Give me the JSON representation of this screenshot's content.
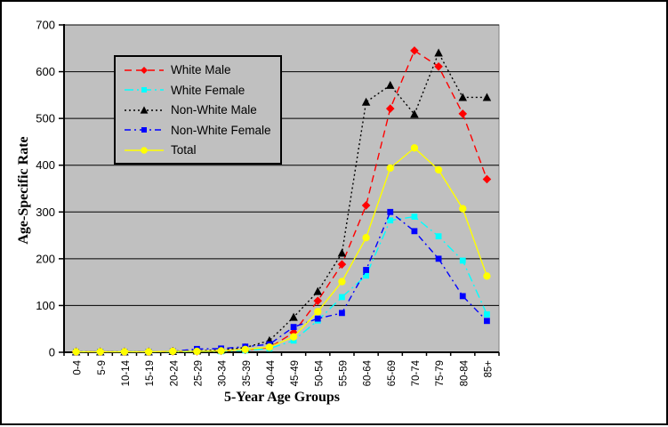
{
  "figure": {
    "background": "#FFFFFF",
    "plot_background": "#C0C0C0",
    "border_color": "#000000",
    "gridline_color": "#000000"
  },
  "legend": {
    "items": [
      "White Male",
      "White Female",
      "Non-White Male",
      "Non-White Female",
      "Total"
    ]
  },
  "chart_data": {
    "type": "line",
    "title": "",
    "xlabel": "5-Year Age Groups",
    "ylabel": "Age-Specific Rate",
    "ylim": [
      0,
      700
    ],
    "y_ticks": [
      0,
      100,
      200,
      300,
      400,
      500,
      600,
      700
    ],
    "grid": true,
    "legend_position": "upper-left-inside",
    "categories": [
      "0-4",
      "5-9",
      "10-14",
      "15-19",
      "20-24",
      "25-29",
      "30-34",
      "35-39",
      "40-44",
      "45-49",
      "50-54",
      "55-59",
      "60-64",
      "65-69",
      "70-74",
      "75-79",
      "80-84",
      "85+"
    ],
    "series": [
      {
        "name": "White Male",
        "color": "#FF0000",
        "line_style": "dashed",
        "dash": "8 5",
        "marker": "diamond",
        "values": [
          1,
          1,
          1,
          1,
          2,
          2,
          3,
          5,
          10,
          42,
          110,
          188,
          314,
          521,
          645,
          611,
          510,
          370
        ]
      },
      {
        "name": "White Female",
        "color": "#00FFFF",
        "line_style": "dash-dot",
        "dash": "10 4 2 4",
        "marker": "square",
        "values": [
          1,
          1,
          1,
          1,
          1,
          2,
          2,
          4,
          8,
          25,
          68,
          118,
          164,
          282,
          290,
          248,
          196,
          81
        ]
      },
      {
        "name": "Non-White Male",
        "color": "#000000",
        "line_style": "dotted",
        "dash": "2 3",
        "marker": "triangle",
        "values": [
          1,
          1,
          1,
          1,
          2,
          3,
          5,
          10,
          25,
          75,
          130,
          212,
          535,
          571,
          509,
          640,
          545,
          545
        ]
      },
      {
        "name": "Non-White Female",
        "color": "#0000FF",
        "line_style": "dash-dot",
        "dash": "7 4 2 4",
        "marker": "square",
        "values": [
          1,
          1,
          1,
          1,
          2,
          7,
          8,
          12,
          17,
          54,
          72,
          84,
          176,
          300,
          259,
          200,
          120,
          67
        ]
      },
      {
        "name": "Total",
        "color": "#FFFF00",
        "line_style": "solid",
        "dash": "",
        "marker": "circle",
        "values": [
          1,
          1,
          1,
          1,
          2,
          2,
          3,
          6,
          11,
          33,
          87,
          151,
          245,
          394,
          437,
          390,
          307,
          163
        ]
      }
    ]
  }
}
